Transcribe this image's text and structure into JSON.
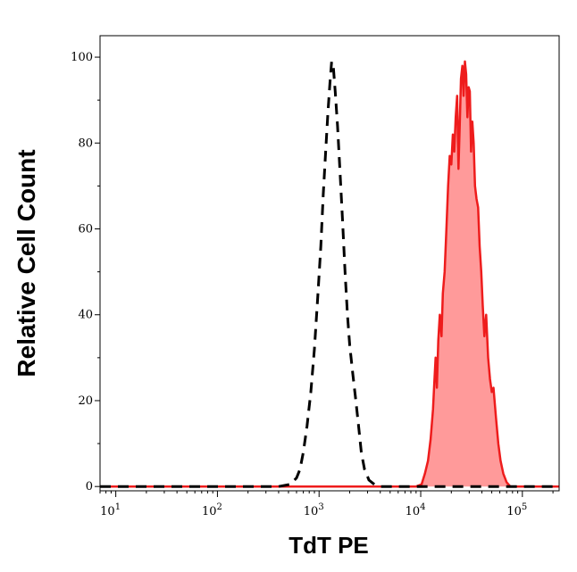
{
  "chart_data": {
    "type": "area",
    "xlabel": "TdT PE",
    "ylabel": "Relative Cell Count",
    "x_scale": "log",
    "xlim": [
      7,
      230000
    ],
    "ylim": [
      -1,
      105
    ],
    "grid": false,
    "y_ticks": [
      0,
      20,
      40,
      60,
      80,
      100
    ],
    "x_ticks": [
      {
        "value": 10,
        "base": "10",
        "exp": "1"
      },
      {
        "value": 100,
        "base": "10",
        "exp": "2"
      },
      {
        "value": 1000,
        "base": "10",
        "exp": "3"
      },
      {
        "value": 10000,
        "base": "10",
        "exp": "4"
      },
      {
        "value": 100000,
        "base": "10",
        "exp": "5"
      }
    ],
    "series": [
      {
        "style": "dashed",
        "color": "#000000",
        "fill": "none",
        "points": [
          [
            7,
            0
          ],
          [
            100,
            0
          ],
          [
            400,
            0
          ],
          [
            520,
            0.5
          ],
          [
            600,
            2
          ],
          [
            650,
            4
          ],
          [
            700,
            8
          ],
          [
            760,
            14
          ],
          [
            830,
            22
          ],
          [
            900,
            32
          ],
          [
            970,
            44
          ],
          [
            1040,
            56
          ],
          [
            1100,
            68
          ],
          [
            1160,
            78
          ],
          [
            1220,
            87
          ],
          [
            1280,
            94
          ],
          [
            1330,
            99
          ],
          [
            1380,
            98
          ],
          [
            1440,
            92
          ],
          [
            1520,
            84
          ],
          [
            1600,
            74
          ],
          [
            1700,
            62
          ],
          [
            1800,
            50
          ],
          [
            1900,
            40
          ],
          [
            2000,
            33
          ],
          [
            2150,
            26
          ],
          [
            2300,
            20
          ],
          [
            2450,
            14
          ],
          [
            2600,
            8
          ],
          [
            2800,
            4
          ],
          [
            3100,
            1.5
          ],
          [
            3500,
            0.5
          ],
          [
            4000,
            0
          ],
          [
            20000,
            0
          ],
          [
            230000,
            0
          ]
        ]
      },
      {
        "style": "solid",
        "color": "#ee1c1c",
        "fill": "#ff9a9a",
        "points": [
          [
            7,
            0
          ],
          [
            9000,
            0
          ],
          [
            10200,
            0.5
          ],
          [
            11000,
            3
          ],
          [
            11800,
            6
          ],
          [
            12500,
            11
          ],
          [
            13200,
            18
          ],
          [
            13600,
            24
          ],
          [
            14000,
            30
          ],
          [
            14400,
            23
          ],
          [
            14900,
            34
          ],
          [
            15400,
            40
          ],
          [
            16000,
            35
          ],
          [
            16500,
            45
          ],
          [
            17200,
            50
          ],
          [
            17900,
            60
          ],
          [
            18600,
            70
          ],
          [
            19300,
            77
          ],
          [
            20000,
            75
          ],
          [
            20700,
            82
          ],
          [
            21400,
            78
          ],
          [
            22100,
            86
          ],
          [
            22800,
            91
          ],
          [
            23500,
            74
          ],
          [
            24200,
            84
          ],
          [
            24900,
            95
          ],
          [
            25700,
            98
          ],
          [
            26400,
            91
          ],
          [
            27200,
            99
          ],
          [
            28000,
            96
          ],
          [
            28800,
            86
          ],
          [
            29600,
            93
          ],
          [
            30400,
            92
          ],
          [
            31300,
            78
          ],
          [
            32200,
            85
          ],
          [
            33200,
            80
          ],
          [
            34200,
            70
          ],
          [
            35400,
            67
          ],
          [
            36700,
            65
          ],
          [
            38000,
            56
          ],
          [
            39400,
            50
          ],
          [
            40800,
            42
          ],
          [
            42300,
            35
          ],
          [
            44000,
            40
          ],
          [
            46000,
            30
          ],
          [
            48000,
            25
          ],
          [
            50000,
            22
          ],
          [
            52000,
            23
          ],
          [
            55000,
            16
          ],
          [
            58000,
            10
          ],
          [
            61000,
            6
          ],
          [
            65000,
            3
          ],
          [
            70000,
            1
          ],
          [
            76000,
            0
          ],
          [
            230000,
            0
          ]
        ]
      }
    ]
  }
}
